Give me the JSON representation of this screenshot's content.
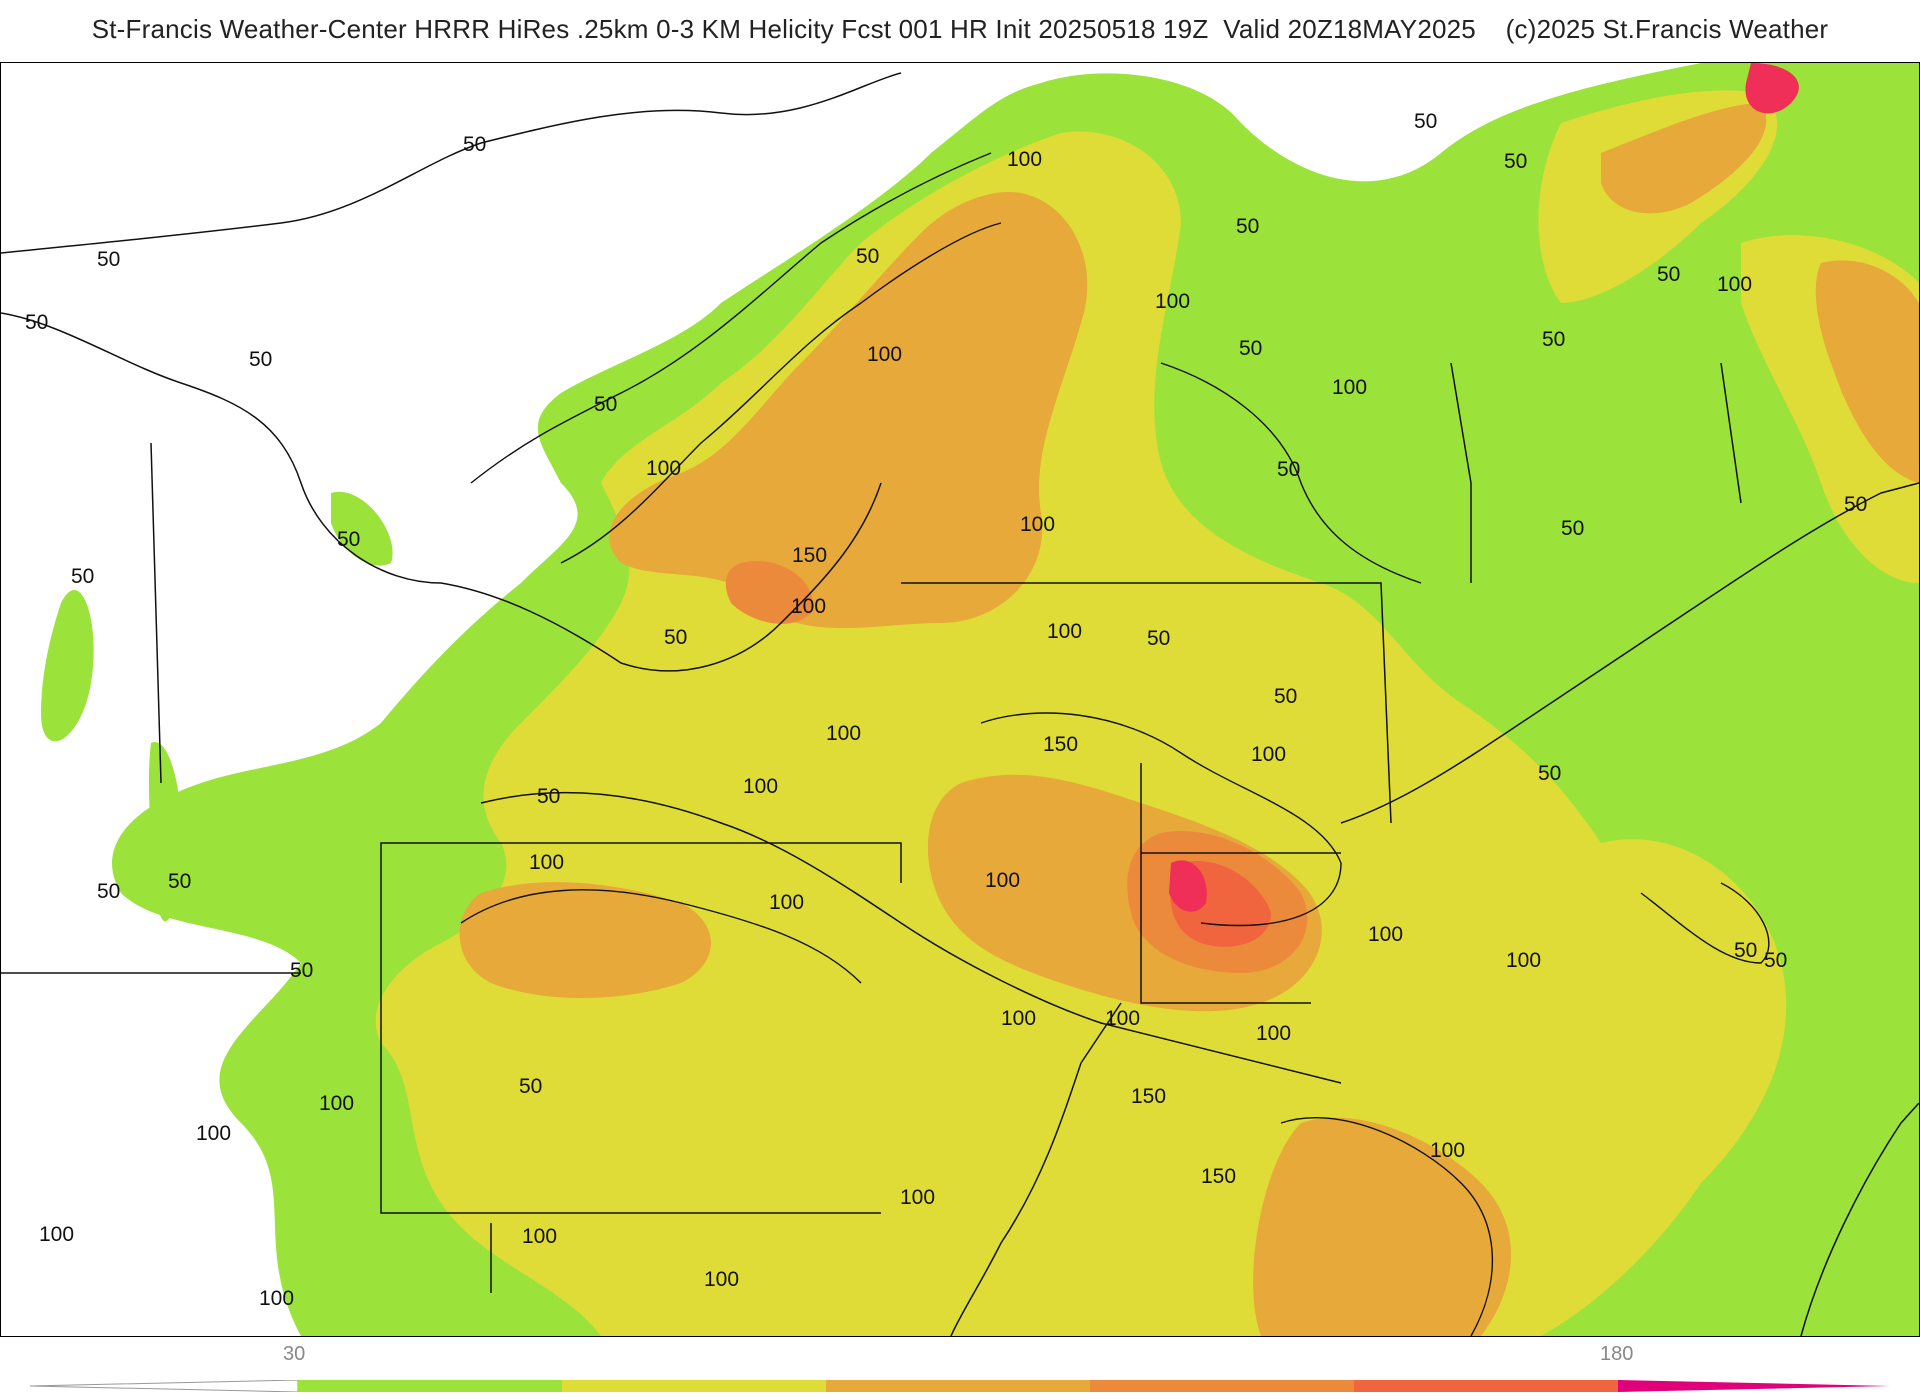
{
  "title": "St-Francis Weather-Center HRRR HiRes .25km 0-3 KM Helicity Fcst 001 HR Init 20250518 19Z  Valid 20Z18MAY2025    (c)2025 St.Francis Weather",
  "colors": {
    "lvl_30": "#9be23a",
    "lvl_60": "#e0dc37",
    "lvl_90": "#e6a93a",
    "lvl_120": "#ec8a3b",
    "lvl_150": "#f0643e",
    "lvl_180": "#ef2f57",
    "lvl_210": "#e0007a",
    "boundary": "#111111",
    "county": "#cfcfcf"
  },
  "colorbar": {
    "label_low": "30",
    "label_high": "180"
  },
  "contour_labels": [
    {
      "id": "l1",
      "text": "50"
    },
    {
      "id": "l2",
      "text": "50"
    },
    {
      "id": "l3",
      "text": "50"
    },
    {
      "id": "l4",
      "text": "50"
    },
    {
      "id": "l5",
      "text": "50"
    },
    {
      "id": "l6",
      "text": "50"
    },
    {
      "id": "l7",
      "text": "50"
    },
    {
      "id": "l8",
      "text": "50"
    },
    {
      "id": "l9",
      "text": "50"
    },
    {
      "id": "l10",
      "text": "50"
    },
    {
      "id": "l11",
      "text": "50"
    },
    {
      "id": "l12",
      "text": "50"
    },
    {
      "id": "l13",
      "text": "50"
    },
    {
      "id": "l14",
      "text": "50"
    },
    {
      "id": "l15",
      "text": "50"
    },
    {
      "id": "l16",
      "text": "50"
    },
    {
      "id": "l17",
      "text": "50"
    },
    {
      "id": "l18",
      "text": "50"
    },
    {
      "id": "l19",
      "text": "50"
    },
    {
      "id": "l20",
      "text": "50"
    },
    {
      "id": "l21",
      "text": "50"
    },
    {
      "id": "l22",
      "text": "50"
    },
    {
      "id": "l23",
      "text": "50"
    },
    {
      "id": "l24",
      "text": "50"
    },
    {
      "id": "l25",
      "text": "50"
    },
    {
      "id": "l26",
      "text": "50"
    },
    {
      "id": "l27",
      "text": "50"
    },
    {
      "id": "l28",
      "text": "50"
    },
    {
      "id": "m1",
      "text": "100"
    },
    {
      "id": "m2",
      "text": "100"
    },
    {
      "id": "m3",
      "text": "100"
    },
    {
      "id": "m4",
      "text": "100"
    },
    {
      "id": "m5",
      "text": "100"
    },
    {
      "id": "m6",
      "text": "100"
    },
    {
      "id": "m7",
      "text": "100"
    },
    {
      "id": "m8",
      "text": "100"
    },
    {
      "id": "m9",
      "text": "100"
    },
    {
      "id": "m10",
      "text": "100"
    },
    {
      "id": "m11",
      "text": "100"
    },
    {
      "id": "m12",
      "text": "100"
    },
    {
      "id": "m13",
      "text": "100"
    },
    {
      "id": "m14",
      "text": "100"
    },
    {
      "id": "m15",
      "text": "100"
    },
    {
      "id": "m16",
      "text": "100"
    },
    {
      "id": "m17",
      "text": "100"
    },
    {
      "id": "m18",
      "text": "100"
    },
    {
      "id": "m19",
      "text": "100"
    },
    {
      "id": "m20",
      "text": "100"
    },
    {
      "id": "m21",
      "text": "100"
    },
    {
      "id": "m22",
      "text": "100"
    },
    {
      "id": "m23",
      "text": "100"
    },
    {
      "id": "m24",
      "text": "100"
    },
    {
      "id": "m25",
      "text": "100"
    },
    {
      "id": "m26",
      "text": "100"
    },
    {
      "id": "m27",
      "text": "100"
    },
    {
      "id": "m28",
      "text": "100"
    },
    {
      "id": "h1",
      "text": "150"
    },
    {
      "id": "h2",
      "text": "150"
    },
    {
      "id": "h3",
      "text": "150"
    },
    {
      "id": "h4",
      "text": "150"
    }
  ]
}
